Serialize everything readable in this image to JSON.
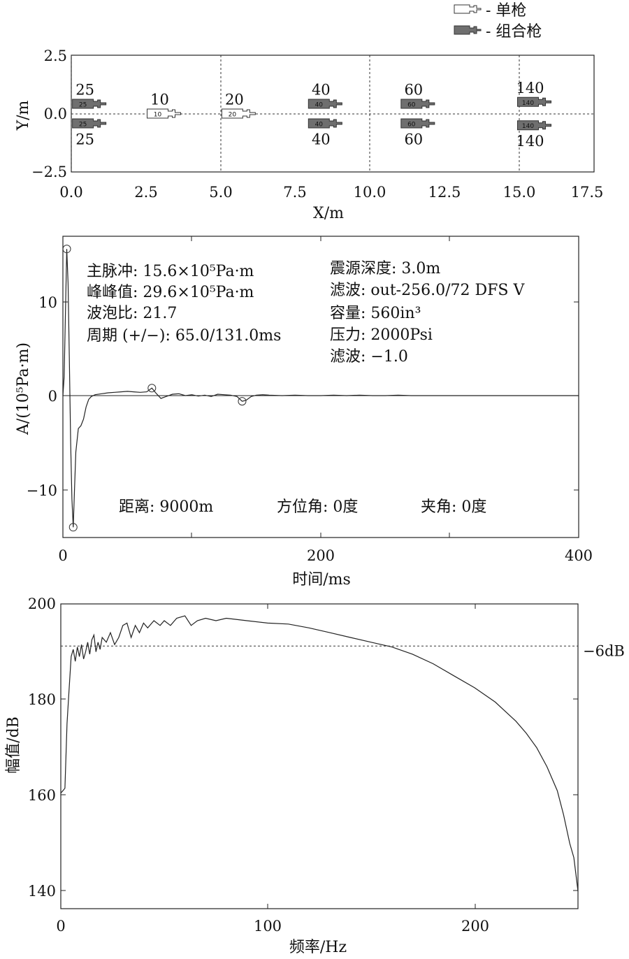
{
  "chart_data": [
    {
      "type": "scatter",
      "subtype": "gun-array-layout",
      "xlabel": "X/m",
      "ylabel": "Y/m",
      "xlim": [
        0,
        17.5
      ],
      "ylim": [
        -2.5,
        2.5
      ],
      "x_ticks": [
        "0.0",
        "2.5",
        "5.0",
        "7.5",
        "10.0",
        "12.5",
        "15.0",
        "17.5"
      ],
      "y_ticks": [
        "2.5",
        "0.0",
        "−2.5"
      ],
      "grid": "dashed lines at x = 0, 5, 10, 15 and y = 0",
      "legend": {
        "placement": "top-right",
        "entries": [
          {
            "label": "- 单枪",
            "style": "outline",
            "color": "#ffffff"
          },
          {
            "label": "- 组合枪",
            "style": "filled",
            "color": "#6f6f6f"
          }
        ]
      },
      "guns": [
        {
          "x": 0.6,
          "y": 0.42,
          "volume": "25",
          "kind": "combined",
          "label": "25",
          "label_pos": "above"
        },
        {
          "x": 0.6,
          "y": -0.42,
          "volume": "25",
          "kind": "combined",
          "label": "25",
          "label_pos": "below"
        },
        {
          "x": 3.1,
          "y": 0.0,
          "volume": "10",
          "kind": "single",
          "label": "10",
          "label_pos": "above"
        },
        {
          "x": 5.6,
          "y": 0.0,
          "volume": "20",
          "kind": "single",
          "label": "20",
          "label_pos": "above"
        },
        {
          "x": 8.5,
          "y": 0.42,
          "volume": "40",
          "kind": "combined",
          "label": "40",
          "label_pos": "above"
        },
        {
          "x": 8.5,
          "y": -0.42,
          "volume": "40",
          "kind": "combined",
          "label": "40",
          "label_pos": "below"
        },
        {
          "x": 11.6,
          "y": 0.42,
          "volume": "60",
          "kind": "combined",
          "label": "60",
          "label_pos": "above"
        },
        {
          "x": 11.6,
          "y": -0.42,
          "volume": "60",
          "kind": "combined",
          "label": "60",
          "label_pos": "below"
        },
        {
          "x": 15.5,
          "y": 0.5,
          "volume": "140",
          "kind": "combined",
          "label": "140",
          "label_pos": "above"
        },
        {
          "x": 15.5,
          "y": -0.5,
          "volume": "140",
          "kind": "combined",
          "label": "140",
          "label_pos": "below"
        }
      ]
    },
    {
      "type": "line",
      "xlabel": "时间/ms",
      "ylabel": "A/(10⁵Pa·m)",
      "xlim": [
        0,
        400
      ],
      "ylim": [
        -15,
        17
      ],
      "x_ticks": [
        "0",
        "200",
        "400"
      ],
      "y_ticks": [
        "10",
        "0",
        "−10"
      ],
      "annotations_left": [
        "主脉冲: 15.6×10⁵Pa·m",
        "峰峰值: 29.6×10⁵Pa·m",
        "波泡比: 21.7",
        "周期 (+/−): 65.0/131.0ms"
      ],
      "annotations_right": [
        "震源深度: 3.0m",
        "滤波: out-256.0/72 DFS V",
        "容量: 560in³",
        "压力: 2000Psi",
        "滤波: −1.0"
      ],
      "annotations_bottom": [
        "距离: 9000m",
        "方位角: 0度",
        "夹角: 0度"
      ],
      "markers": [
        {
          "x": 3,
          "y": 15.6
        },
        {
          "x": 8,
          "y": -14.0
        },
        {
          "x": 69,
          "y": 0.8
        },
        {
          "x": 139,
          "y": -0.6
        }
      ],
      "series": [
        {
          "x": [
            0,
            1,
            2,
            3,
            4,
            5,
            6,
            7,
            8,
            9,
            10,
            12,
            14,
            16,
            18,
            20,
            22,
            25,
            30,
            35,
            40,
            45,
            50,
            55,
            60,
            65,
            69,
            72,
            76,
            80,
            85,
            90,
            95,
            100,
            105,
            110,
            115,
            120,
            125,
            130,
            135,
            139,
            142,
            146,
            150,
            155,
            160,
            170,
            180,
            190,
            200,
            210,
            220,
            230,
            240,
            250,
            260,
            270,
            280,
            300,
            320,
            340,
            360,
            380,
            400
          ],
          "y": [
            0,
            2,
            9,
            15.6,
            12,
            4,
            -5,
            -11,
            -14,
            -10,
            -6,
            -3.5,
            -3.2,
            -2.5,
            -1.2,
            -0.4,
            -0.1,
            0.1,
            0.2,
            0.3,
            0.35,
            0.4,
            0.45,
            0.4,
            0.35,
            0.4,
            0.8,
            0.3,
            -0.3,
            -0.1,
            0.15,
            0.2,
            0.0,
            0.1,
            -0.05,
            0.05,
            -0.1,
            0.15,
            0.1,
            0.05,
            -0.1,
            -0.6,
            -0.5,
            -0.1,
            0.05,
            0.1,
            0.05,
            0,
            0.05,
            0,
            0,
            0.05,
            0,
            0.05,
            0,
            0,
            0.05,
            0,
            0,
            0,
            0,
            0,
            0,
            0,
            0
          ]
        }
      ]
    },
    {
      "type": "line",
      "xlabel": "频率/Hz",
      "ylabel": "幅值/dB",
      "xlim": [
        0,
        250
      ],
      "ylim": [
        138,
        200
      ],
      "x_ticks": [
        "0",
        "100",
        "200"
      ],
      "y_ticks": [
        "200",
        "180",
        "160",
        "140"
      ],
      "reference_line": {
        "y": 191.2,
        "label": "−6dB",
        "style": "dashed"
      },
      "series": [
        {
          "x": [
            0,
            1,
            2,
            3,
            4,
            5,
            6,
            7,
            8,
            9,
            10,
            11,
            12,
            13,
            14,
            15,
            16,
            17,
            18,
            19,
            20,
            22,
            24,
            26,
            28,
            30,
            32,
            34,
            36,
            38,
            40,
            42,
            45,
            48,
            50,
            53,
            56,
            60,
            63,
            66,
            70,
            75,
            80,
            90,
            100,
            110,
            120,
            130,
            140,
            150,
            160,
            170,
            180,
            190,
            200,
            210,
            220,
            225,
            230,
            235,
            240,
            243,
            246,
            248,
            250
          ],
          "y": [
            160.5,
            161,
            161.5,
            175,
            182,
            189,
            190.5,
            188,
            191,
            189,
            191.5,
            188.5,
            190,
            192,
            189.5,
            192.5,
            193.5,
            190,
            192,
            190.5,
            193,
            192,
            194,
            191.5,
            193,
            195.5,
            196,
            193,
            195.5,
            194,
            196,
            195,
            196.5,
            195.5,
            196.5,
            195.5,
            197,
            197.5,
            195.5,
            196.5,
            197,
            196.5,
            197,
            196.5,
            196,
            195.8,
            195,
            194,
            193,
            192,
            191,
            189.5,
            187.5,
            185,
            182.5,
            179.5,
            175.5,
            173,
            170,
            166,
            161,
            156,
            150,
            147,
            140
          ]
        }
      ]
    }
  ]
}
